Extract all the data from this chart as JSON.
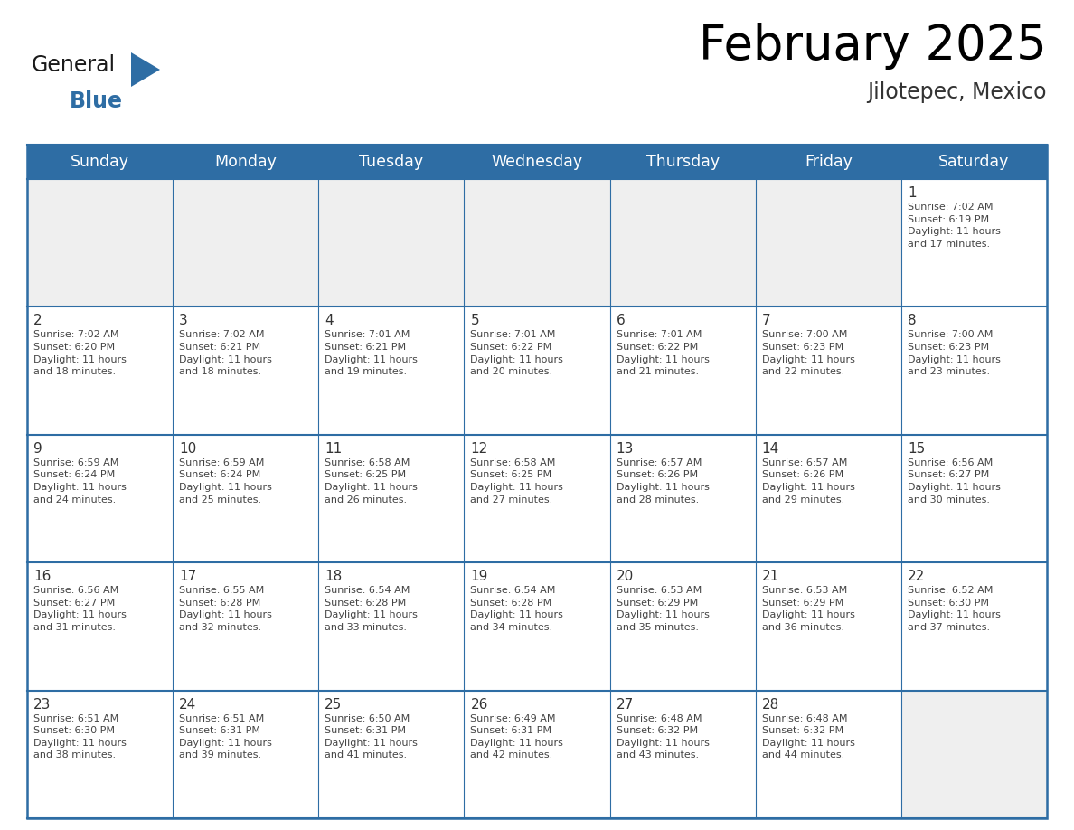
{
  "title": "February 2025",
  "subtitle": "Jilotepec, Mexico",
  "header_bg": "#2E6DA4",
  "header_text": "#FFFFFF",
  "cell_bg_empty": "#EFEFEF",
  "cell_bg_normal": "#FFFFFF",
  "line_color": "#2E6DA4",
  "day_headers": [
    "Sunday",
    "Monday",
    "Tuesday",
    "Wednesday",
    "Thursday",
    "Friday",
    "Saturday"
  ],
  "title_fontsize": 38,
  "subtitle_fontsize": 17,
  "header_fontsize": 12.5,
  "day_num_fontsize": 11,
  "cell_text_fontsize": 8.0,
  "logo_color1": "#1a1a1a",
  "logo_color2": "#2E6DA4",
  "logo_triangle_color": "#2E6DA4",
  "weeks": [
    [
      {
        "day": null,
        "text": ""
      },
      {
        "day": null,
        "text": ""
      },
      {
        "day": null,
        "text": ""
      },
      {
        "day": null,
        "text": ""
      },
      {
        "day": null,
        "text": ""
      },
      {
        "day": null,
        "text": ""
      },
      {
        "day": 1,
        "text": "Sunrise: 7:02 AM\nSunset: 6:19 PM\nDaylight: 11 hours\nand 17 minutes."
      }
    ],
    [
      {
        "day": 2,
        "text": "Sunrise: 7:02 AM\nSunset: 6:20 PM\nDaylight: 11 hours\nand 18 minutes."
      },
      {
        "day": 3,
        "text": "Sunrise: 7:02 AM\nSunset: 6:21 PM\nDaylight: 11 hours\nand 18 minutes."
      },
      {
        "day": 4,
        "text": "Sunrise: 7:01 AM\nSunset: 6:21 PM\nDaylight: 11 hours\nand 19 minutes."
      },
      {
        "day": 5,
        "text": "Sunrise: 7:01 AM\nSunset: 6:22 PM\nDaylight: 11 hours\nand 20 minutes."
      },
      {
        "day": 6,
        "text": "Sunrise: 7:01 AM\nSunset: 6:22 PM\nDaylight: 11 hours\nand 21 minutes."
      },
      {
        "day": 7,
        "text": "Sunrise: 7:00 AM\nSunset: 6:23 PM\nDaylight: 11 hours\nand 22 minutes."
      },
      {
        "day": 8,
        "text": "Sunrise: 7:00 AM\nSunset: 6:23 PM\nDaylight: 11 hours\nand 23 minutes."
      }
    ],
    [
      {
        "day": 9,
        "text": "Sunrise: 6:59 AM\nSunset: 6:24 PM\nDaylight: 11 hours\nand 24 minutes."
      },
      {
        "day": 10,
        "text": "Sunrise: 6:59 AM\nSunset: 6:24 PM\nDaylight: 11 hours\nand 25 minutes."
      },
      {
        "day": 11,
        "text": "Sunrise: 6:58 AM\nSunset: 6:25 PM\nDaylight: 11 hours\nand 26 minutes."
      },
      {
        "day": 12,
        "text": "Sunrise: 6:58 AM\nSunset: 6:25 PM\nDaylight: 11 hours\nand 27 minutes."
      },
      {
        "day": 13,
        "text": "Sunrise: 6:57 AM\nSunset: 6:26 PM\nDaylight: 11 hours\nand 28 minutes."
      },
      {
        "day": 14,
        "text": "Sunrise: 6:57 AM\nSunset: 6:26 PM\nDaylight: 11 hours\nand 29 minutes."
      },
      {
        "day": 15,
        "text": "Sunrise: 6:56 AM\nSunset: 6:27 PM\nDaylight: 11 hours\nand 30 minutes."
      }
    ],
    [
      {
        "day": 16,
        "text": "Sunrise: 6:56 AM\nSunset: 6:27 PM\nDaylight: 11 hours\nand 31 minutes."
      },
      {
        "day": 17,
        "text": "Sunrise: 6:55 AM\nSunset: 6:28 PM\nDaylight: 11 hours\nand 32 minutes."
      },
      {
        "day": 18,
        "text": "Sunrise: 6:54 AM\nSunset: 6:28 PM\nDaylight: 11 hours\nand 33 minutes."
      },
      {
        "day": 19,
        "text": "Sunrise: 6:54 AM\nSunset: 6:28 PM\nDaylight: 11 hours\nand 34 minutes."
      },
      {
        "day": 20,
        "text": "Sunrise: 6:53 AM\nSunset: 6:29 PM\nDaylight: 11 hours\nand 35 minutes."
      },
      {
        "day": 21,
        "text": "Sunrise: 6:53 AM\nSunset: 6:29 PM\nDaylight: 11 hours\nand 36 minutes."
      },
      {
        "day": 22,
        "text": "Sunrise: 6:52 AM\nSunset: 6:30 PM\nDaylight: 11 hours\nand 37 minutes."
      }
    ],
    [
      {
        "day": 23,
        "text": "Sunrise: 6:51 AM\nSunset: 6:30 PM\nDaylight: 11 hours\nand 38 minutes."
      },
      {
        "day": 24,
        "text": "Sunrise: 6:51 AM\nSunset: 6:31 PM\nDaylight: 11 hours\nand 39 minutes."
      },
      {
        "day": 25,
        "text": "Sunrise: 6:50 AM\nSunset: 6:31 PM\nDaylight: 11 hours\nand 41 minutes."
      },
      {
        "day": 26,
        "text": "Sunrise: 6:49 AM\nSunset: 6:31 PM\nDaylight: 11 hours\nand 42 minutes."
      },
      {
        "day": 27,
        "text": "Sunrise: 6:48 AM\nSunset: 6:32 PM\nDaylight: 11 hours\nand 43 minutes."
      },
      {
        "day": 28,
        "text": "Sunrise: 6:48 AM\nSunset: 6:32 PM\nDaylight: 11 hours\nand 44 minutes."
      },
      {
        "day": null,
        "text": ""
      }
    ]
  ]
}
